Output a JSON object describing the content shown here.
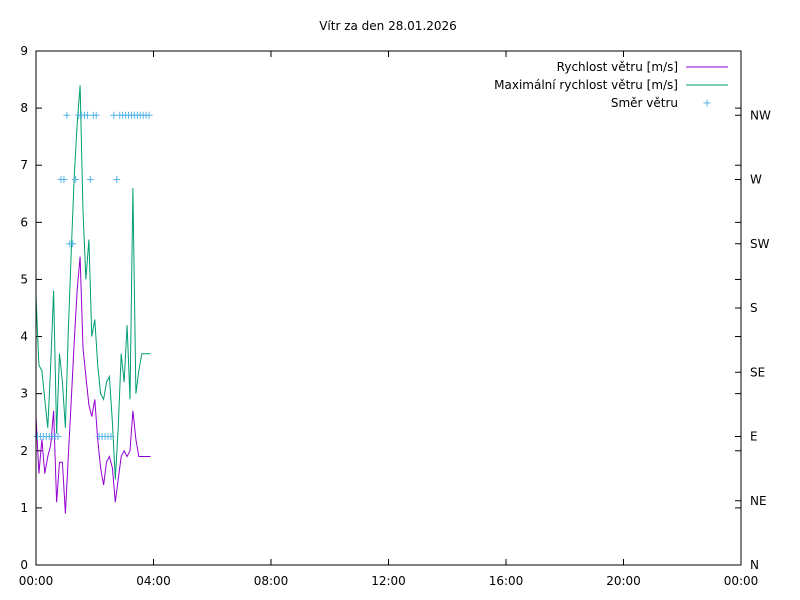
{
  "chart_data": {
    "type": "line",
    "title": "Vítr za den 28.01.2026",
    "xlabel": "",
    "ylabel": "",
    "xlim": [
      0,
      24
    ],
    "ylim": [
      0,
      9
    ],
    "x_ticks": [
      {
        "value": 0,
        "label": "00:00"
      },
      {
        "value": 4,
        "label": "04:00"
      },
      {
        "value": 8,
        "label": "08:00"
      },
      {
        "value": 12,
        "label": "12:00"
      },
      {
        "value": 16,
        "label": "16:00"
      },
      {
        "value": 20,
        "label": "20:00"
      },
      {
        "value": 24,
        "label": "00:00"
      }
    ],
    "y_ticks": [
      0,
      1,
      2,
      3,
      4,
      5,
      6,
      7,
      8,
      9
    ],
    "y2_ticks": [
      {
        "value": 0,
        "label": "N"
      },
      {
        "value": 45,
        "label": "NE"
      },
      {
        "value": 90,
        "label": "E"
      },
      {
        "value": 135,
        "label": "SE"
      },
      {
        "value": 180,
        "label": "S"
      },
      {
        "value": 225,
        "label": "SW"
      },
      {
        "value": 270,
        "label": "W"
      },
      {
        "value": 315,
        "label": "NW"
      }
    ],
    "y2lim": [
      0,
      360
    ],
    "legend_position": "top-right",
    "series": [
      {
        "name": "Rychlost větru [m/s]",
        "color": "#9400d3",
        "style": "line",
        "axis": "y",
        "x": [
          0.0,
          0.1,
          0.2,
          0.3,
          0.4,
          0.5,
          0.6,
          0.7,
          0.8,
          0.9,
          1.0,
          1.1,
          1.2,
          1.3,
          1.4,
          1.5,
          1.6,
          1.7,
          1.8,
          1.9,
          2.0,
          2.1,
          2.2,
          2.3,
          2.4,
          2.5,
          2.6,
          2.7,
          2.8,
          2.9,
          3.0,
          3.1,
          3.2,
          3.3,
          3.4,
          3.5,
          3.6,
          3.7,
          3.8,
          3.9
        ],
        "values": [
          2.6,
          1.6,
          2.2,
          1.6,
          1.9,
          2.1,
          2.7,
          1.1,
          1.8,
          1.8,
          0.9,
          1.9,
          2.9,
          3.9,
          4.8,
          5.4,
          3.8,
          3.3,
          2.8,
          2.6,
          2.9,
          2.2,
          1.7,
          1.4,
          1.8,
          1.9,
          1.7,
          1.1,
          1.5,
          1.9,
          2.0,
          1.9,
          2.0,
          2.7,
          2.2,
          1.9,
          1.9,
          1.9,
          1.9,
          1.9
        ]
      },
      {
        "name": "Maximální rychlost větru [m/s]",
        "color": "#009e73",
        "style": "line",
        "axis": "y",
        "x": [
          0.0,
          0.1,
          0.2,
          0.3,
          0.4,
          0.5,
          0.6,
          0.7,
          0.8,
          0.9,
          1.0,
          1.1,
          1.2,
          1.3,
          1.4,
          1.5,
          1.6,
          1.7,
          1.8,
          1.9,
          2.0,
          2.1,
          2.2,
          2.3,
          2.4,
          2.5,
          2.6,
          2.7,
          2.8,
          2.9,
          3.0,
          3.1,
          3.2,
          3.3,
          3.4,
          3.5,
          3.6,
          3.7,
          3.8,
          3.9
        ],
        "values": [
          4.7,
          3.5,
          3.4,
          2.9,
          2.4,
          3.5,
          4.8,
          2.3,
          3.7,
          3.2,
          2.4,
          4.1,
          5.5,
          6.8,
          7.7,
          8.4,
          6.2,
          5.0,
          5.7,
          4.0,
          4.3,
          3.5,
          3.0,
          2.9,
          3.2,
          3.3,
          2.5,
          1.5,
          2.4,
          3.7,
          3.2,
          4.2,
          2.9,
          6.6,
          3.0,
          3.4,
          3.7,
          3.7,
          3.7,
          3.7
        ]
      },
      {
        "name": "Směr větru",
        "color": "#56b4e9",
        "style": "points",
        "axis": "y2",
        "x": [
          0.05,
          0.15,
          0.25,
          0.35,
          0.45,
          0.55,
          0.65,
          0.75,
          0.85,
          0.95,
          1.05,
          1.15,
          1.25,
          1.35,
          1.45,
          1.55,
          1.65,
          1.75,
          1.85,
          1.95,
          2.05,
          2.15,
          2.25,
          2.35,
          2.45,
          2.55,
          2.65,
          2.75,
          2.85,
          2.95,
          3.05,
          3.15,
          3.25,
          3.35,
          3.45,
          3.55,
          3.65,
          3.75,
          3.85
        ],
        "values": [
          90,
          90,
          90,
          90,
          90,
          90,
          90,
          90,
          270,
          270,
          315,
          225,
          225,
          270,
          315,
          315,
          315,
          315,
          270,
          315,
          315,
          90,
          90,
          90,
          90,
          90,
          315,
          270,
          315,
          315,
          315,
          315,
          315,
          315,
          315,
          315,
          315,
          315,
          315
        ]
      }
    ]
  }
}
